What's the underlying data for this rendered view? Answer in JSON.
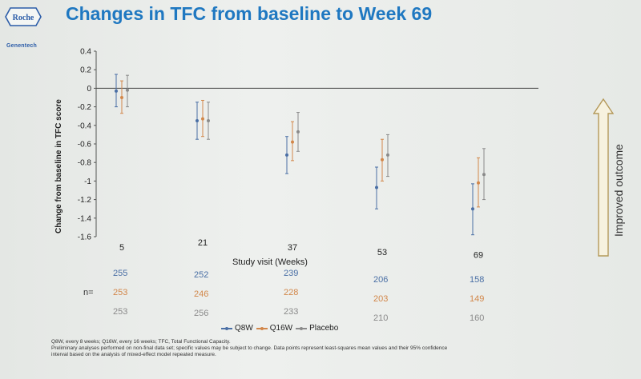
{
  "header": {
    "title": "Changes in TFC from baseline to Week 69",
    "logo_roche": "Roche",
    "logo_genentech": "Genentech"
  },
  "outcome_label": "Improved outcome",
  "n_label": "n=",
  "n_counts": {
    "Q8W": [
      "255",
      "252",
      "239",
      "206",
      "158"
    ],
    "Q16W": [
      "253",
      "246",
      "228",
      "203",
      "149"
    ],
    "Placebo": [
      "253",
      "256",
      "233",
      "210",
      "160"
    ]
  },
  "footnotes": [
    "Q8W, every 8 weeks; Q16W, every 16 weeks; TFC, Total Functional Capacity.",
    "Preliminary analyses performed on non-final data set; specific values may be subject to change. Data points represent least-squares mean values and their 95% confidence",
    "interval based on the analysis of mixed-effect model repeated measure."
  ],
  "colors": {
    "Q8W": "#4a6fa5",
    "Q16W": "#d2874a",
    "Placebo": "#8a8a8a",
    "title": "#1f78c1"
  },
  "chart_data": {
    "type": "scatter",
    "title": "Changes in TFC from baseline to Week 69",
    "xlabel": "Study visit (Weeks)",
    "ylabel": "Change from baseline in TFC score",
    "categories": [
      "5",
      "21",
      "37",
      "53",
      "69"
    ],
    "ylim": [
      -1.6,
      0.4
    ],
    "yticks": [
      "0.4",
      "0.2",
      "0",
      "-0.2",
      "-0.4",
      "-0.6",
      "-0.8",
      "-1",
      "-1.2",
      "-1.4",
      "-1.6"
    ],
    "grid": false,
    "legend": "bottom",
    "series": [
      {
        "name": "Q8W",
        "values": [
          -0.03,
          -0.35,
          -0.72,
          -1.07,
          -1.3
        ],
        "lower": [
          -0.2,
          -0.55,
          -0.92,
          -1.3,
          -1.58
        ],
        "upper": [
          0.15,
          -0.15,
          -0.52,
          -0.85,
          -1.03
        ]
      },
      {
        "name": "Q16W",
        "values": [
          -0.1,
          -0.33,
          -0.58,
          -0.77,
          -1.02
        ],
        "lower": [
          -0.27,
          -0.52,
          -0.78,
          -1.0,
          -1.28
        ],
        "upper": [
          0.08,
          -0.13,
          -0.36,
          -0.55,
          -0.75
        ]
      },
      {
        "name": "Placebo",
        "values": [
          -0.02,
          -0.35,
          -0.47,
          -0.72,
          -0.93
        ],
        "lower": [
          -0.2,
          -0.55,
          -0.68,
          -0.95,
          -1.2
        ],
        "upper": [
          0.14,
          -0.15,
          -0.26,
          -0.5,
          -0.65
        ]
      }
    ]
  }
}
